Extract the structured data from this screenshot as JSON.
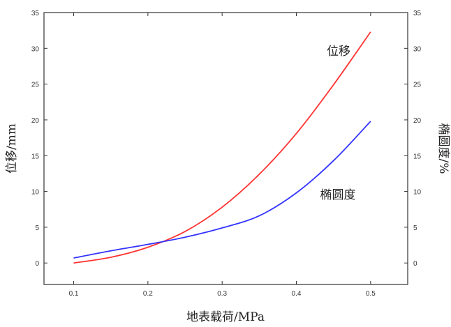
{
  "chart_data": {
    "type": "line",
    "xlabel": "地表载荷/MPa",
    "ylabel_left": "位移/mm",
    "ylabel_right": "椭圆度/%",
    "xlim": [
      0.06,
      0.55
    ],
    "ylim": [
      -3,
      35
    ],
    "x_ticks": [
      0.1,
      0.2,
      0.3,
      0.4,
      0.5
    ],
    "x_tick_labels": [
      "0.1",
      "0.2",
      "0.3",
      "0.4",
      "0.5"
    ],
    "y_ticks": [
      0,
      5,
      10,
      15,
      20,
      25,
      30,
      35
    ],
    "y_tick_labels": [
      "0",
      "5",
      "10",
      "15",
      "20",
      "25",
      "30",
      "35"
    ],
    "grid": false,
    "series": [
      {
        "name": "位移",
        "color": "#ff3333",
        "x": [
          0.1,
          0.15,
          0.2,
          0.25,
          0.3,
          0.35,
          0.4,
          0.45,
          0.5
        ],
        "y": [
          0.0,
          0.8,
          2.2,
          4.4,
          7.8,
          12.4,
          18.1,
          24.9,
          32.3
        ]
      },
      {
        "name": "椭圆度",
        "color": "#3333ff",
        "x": [
          0.1,
          0.15,
          0.2,
          0.25,
          0.3,
          0.35,
          0.4,
          0.45,
          0.5
        ],
        "y": [
          0.7,
          1.7,
          2.6,
          3.6,
          4.9,
          6.6,
          9.8,
          14.3,
          19.8
        ]
      }
    ]
  }
}
